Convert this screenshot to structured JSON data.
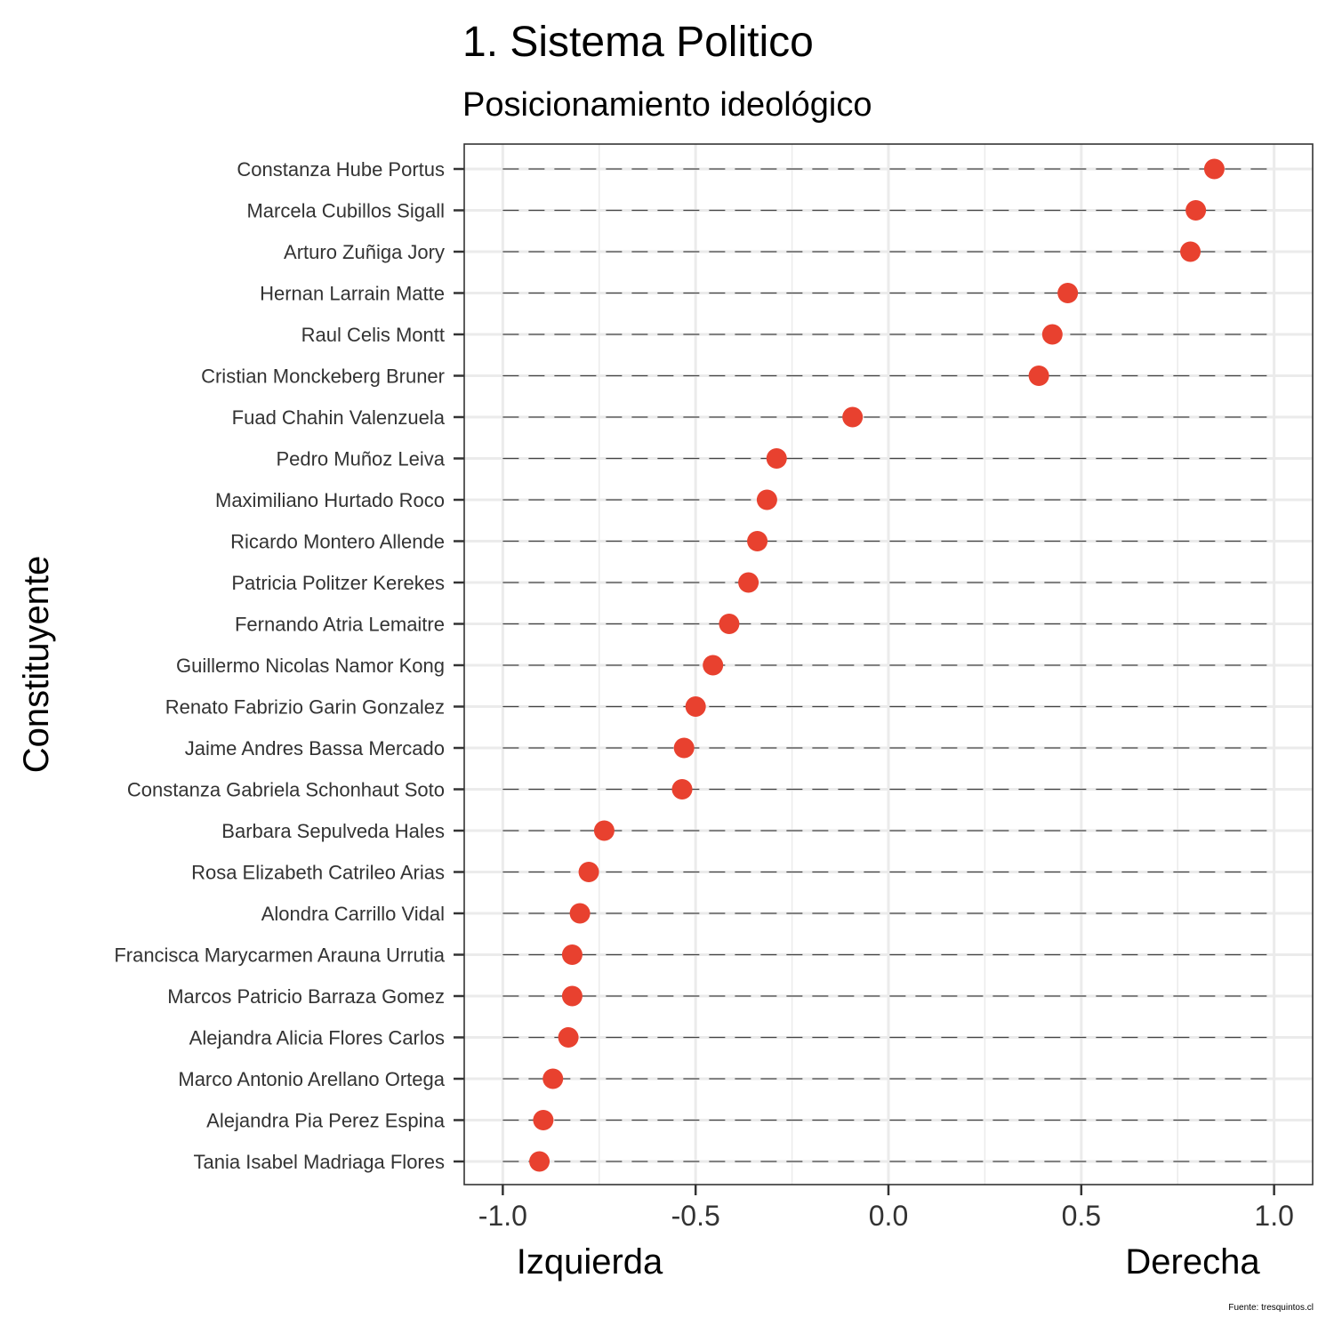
{
  "chart_data": {
    "type": "scatter",
    "title": "1. Sistema Politico",
    "subtitle": "Posicionamiento ideológico",
    "ylabel": "Constituyente",
    "x_left_label": "Izquierda",
    "x_right_label": "Derecha",
    "caption": "Fuente: tresquintos.cl",
    "xlim": [
      -1.1,
      1.1
    ],
    "x_ticks": [
      -1.0,
      -0.5,
      0.0,
      0.5,
      1.0
    ],
    "x_tick_labels": [
      "-1.0",
      "-0.5",
      "0.0",
      "0.5",
      "1.0"
    ],
    "grid": true,
    "point_color": "#E8412F",
    "reference_line_span": [
      -1.0,
      1.0
    ],
    "points": [
      {
        "name": "Constanza Hube Portus",
        "x": 0.845
      },
      {
        "name": "Marcela Cubillos Sigall",
        "x": 0.797
      },
      {
        "name": "Arturo Zuñiga Jory",
        "x": 0.783
      },
      {
        "name": "Hernan Larrain Matte",
        "x": 0.465
      },
      {
        "name": "Raul Celis Montt",
        "x": 0.425
      },
      {
        "name": "Cristian Monckeberg Bruner",
        "x": 0.39
      },
      {
        "name": "Fuad Chahin Valenzuela",
        "x": -0.093
      },
      {
        "name": "Pedro Muñoz Leiva",
        "x": -0.29
      },
      {
        "name": "Maximiliano Hurtado Roco",
        "x": -0.315
      },
      {
        "name": "Ricardo Montero Allende",
        "x": -0.34
      },
      {
        "name": "Patricia Politzer Kerekes",
        "x": -0.363
      },
      {
        "name": "Fernando Atria Lemaitre",
        "x": -0.413
      },
      {
        "name": "Guillermo Nicolas Namor Kong",
        "x": -0.455
      },
      {
        "name": "Renato Fabrizio Garin Gonzalez",
        "x": -0.5
      },
      {
        "name": "Jaime Andres Bassa Mercado",
        "x": -0.53
      },
      {
        "name": "Constanza Gabriela Schonhaut Soto",
        "x": -0.535
      },
      {
        "name": "Barbara Sepulveda Hales",
        "x": -0.737
      },
      {
        "name": "Rosa Elizabeth Catrileo Arias",
        "x": -0.777
      },
      {
        "name": "Alondra Carrillo Vidal",
        "x": -0.8
      },
      {
        "name": "Francisca Marycarmen Arauna Urrutia",
        "x": -0.82
      },
      {
        "name": "Marcos Patricio Barraza Gomez",
        "x": -0.82
      },
      {
        "name": "Alejandra Alicia Flores Carlos",
        "x": -0.83
      },
      {
        "name": "Marco Antonio Arellano Ortega",
        "x": -0.87
      },
      {
        "name": "Alejandra Pia Perez Espina",
        "x": -0.895
      },
      {
        "name": "Tania Isabel Madriaga Flores",
        "x": -0.905
      }
    ]
  }
}
